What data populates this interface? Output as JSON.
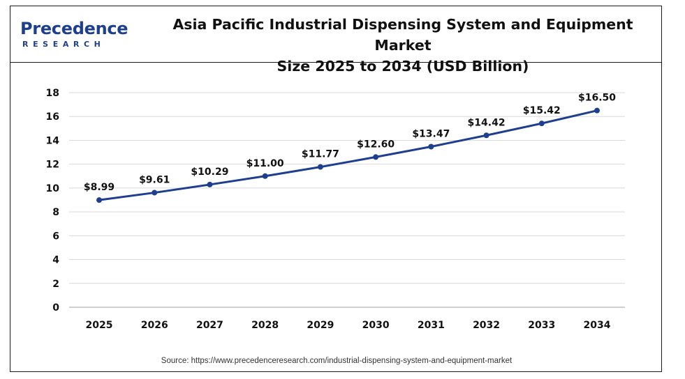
{
  "brand": {
    "name": "Precedence",
    "sub": "RESEARCH"
  },
  "chart_data": {
    "type": "line",
    "title_line1": "Asia Pacific Industrial Dispensing System and Equipment Market",
    "title_line2": "Size 2025 to 2034 (USD Billion)",
    "categories": [
      "2025",
      "2026",
      "2027",
      "2028",
      "2029",
      "2030",
      "2031",
      "2032",
      "2033",
      "2034"
    ],
    "values": [
      8.99,
      9.61,
      10.29,
      11.0,
      11.77,
      12.6,
      13.47,
      14.42,
      15.42,
      16.5
    ],
    "data_labels": [
      "$8.99",
      "$9.61",
      "$10.29",
      "$11.00",
      "$11.77",
      "$12.60",
      "$13.47",
      "$14.42",
      "$15.42",
      "$16.50"
    ],
    "yticks": [
      "0",
      "2",
      "4",
      "6",
      "8",
      "10",
      "12",
      "14",
      "16",
      "18"
    ],
    "ylim": [
      0,
      18
    ],
    "grid": true,
    "line_color": "#1e3f8f",
    "grid_color": "#d9d9d9"
  },
  "source": "Source: https://www.precedenceresearch.com/industrial-dispensing-system-and-equipment-market"
}
